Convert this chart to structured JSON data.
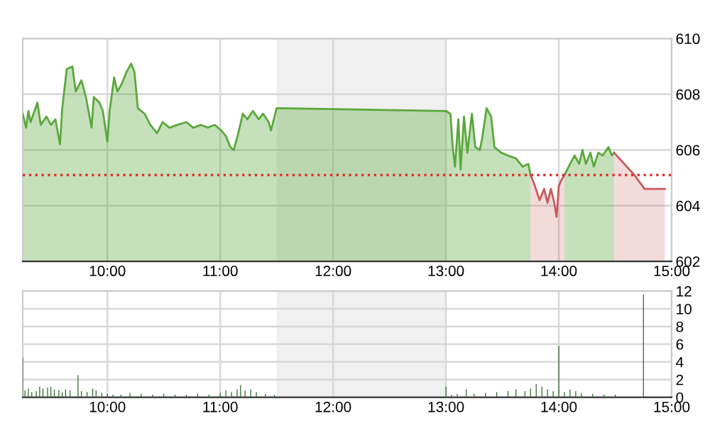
{
  "chart_data": [
    {
      "type": "area",
      "series": [
        {
          "color": "#5aa83c",
          "x": [
            9.25,
            9.28,
            9.3,
            9.32,
            9.38,
            9.41,
            9.46,
            9.5,
            9.54,
            9.58,
            9.6,
            9.64,
            9.69,
            9.72,
            9.77,
            9.81,
            9.86,
            9.88,
            9.93,
            9.96,
            10.0,
            10.02,
            10.06,
            10.09,
            10.13,
            10.17,
            10.21,
            10.24,
            10.27,
            10.33,
            10.38,
            10.44,
            10.49,
            10.55,
            10.62,
            10.7,
            10.76,
            10.83,
            10.89,
            10.95,
            11.01,
            11.05,
            11.09,
            11.12,
            11.16,
            11.2,
            11.24,
            11.29,
            11.34,
            11.38,
            11.43,
            11.45,
            11.5,
            13.0,
            13.04,
            13.06,
            13.08,
            13.11,
            13.13,
            13.16,
            13.19,
            13.23,
            13.26,
            13.3,
            13.32,
            13.36,
            13.4,
            13.43,
            13.49,
            13.55,
            13.62,
            13.68,
            13.73,
            13.75,
            13.78,
            14.05,
            14.1,
            14.14,
            14.18,
            14.21,
            14.24,
            14.28,
            14.31,
            14.35,
            14.39,
            14.44,
            14.47,
            14.49
          ],
          "values": [
            607.3,
            606.8,
            607.4,
            607.0,
            607.7,
            606.9,
            607.2,
            606.9,
            607.1,
            606.2,
            607.5,
            608.9,
            609.0,
            608.1,
            608.5,
            607.9,
            606.8,
            607.9,
            607.7,
            607.4,
            606.3,
            607.4,
            608.6,
            608.1,
            608.4,
            608.8,
            609.1,
            608.8,
            607.5,
            607.3,
            606.9,
            606.6,
            607.0,
            606.8,
            606.9,
            607.0,
            606.8,
            606.9,
            606.8,
            606.9,
            606.7,
            606.5,
            606.1,
            606.0,
            606.6,
            607.3,
            607.1,
            607.4,
            607.1,
            607.3,
            607.0,
            606.7,
            607.5,
            607.4,
            607.3,
            606.1,
            605.4,
            607.1,
            605.3,
            607.2,
            605.9,
            607.3,
            606.1,
            606.0,
            606.4,
            607.5,
            607.2,
            606.1,
            605.9,
            605.8,
            605.7,
            605.4,
            605.5,
            605.1,
            null,
            605.1,
            605.5,
            605.8,
            605.5,
            606.0,
            605.5,
            605.9,
            605.4,
            605.9,
            605.8,
            606.1,
            605.8,
            605.9
          ]
        },
        {
          "color": "#c85a5a",
          "x": [
            13.75,
            13.78,
            13.83,
            13.87,
            13.9,
            13.93,
            13.96,
            13.98,
            14.0,
            14.02,
            14.05,
            14.07,
            14.49,
            14.67,
            14.76,
            14.94
          ],
          "values": [
            605.1,
            604.8,
            604.2,
            604.6,
            604.1,
            604.6,
            604.1,
            603.6,
            604.7,
            604.9,
            605.1,
            null,
            605.9,
            605.1,
            604.6,
            604.6
          ]
        }
      ],
      "xlim": [
        9.25,
        15
      ],
      "ylim": [
        602,
        610
      ],
      "xticks": [
        {
          "value": 10,
          "label": "10:00"
        },
        {
          "value": 11,
          "label": "11:00"
        },
        {
          "value": 12,
          "label": "12:00"
        },
        {
          "value": 13,
          "label": "13:00"
        },
        {
          "value": 14,
          "label": "14:00"
        },
        {
          "value": 15,
          "label": "15:00"
        }
      ],
      "yticks": [
        602,
        604,
        606,
        608,
        610
      ],
      "ref_lines": [
        {
          "axis": "y",
          "value": 605.1,
          "color": "#e03030",
          "line_style": "dotted"
        }
      ],
      "bands": [
        {
          "axis": "x",
          "from": 11.5,
          "to": 13,
          "color": "#f0f0f0"
        }
      ],
      "grid": true
    },
    {
      "type": "bar",
      "series": [
        {
          "color": "#2e6b2e",
          "x": [
            9.25,
            9.27,
            9.3,
            9.33,
            9.37,
            9.4,
            9.43,
            9.47,
            9.5,
            9.53,
            9.57,
            9.6,
            9.63,
            9.67,
            9.74,
            9.77,
            9.82,
            9.87,
            9.9,
            9.95,
            10.0,
            10.05,
            10.12,
            10.2,
            10.3,
            10.4,
            10.5,
            10.6,
            10.7,
            10.8,
            10.9,
            11.0,
            11.05,
            11.1,
            11.15,
            11.18,
            11.22,
            11.27,
            11.32,
            11.4,
            11.48,
            13.0,
            13.05,
            13.1,
            13.18,
            13.25,
            13.35,
            13.45,
            13.55,
            13.62,
            13.7,
            13.75,
            13.8,
            13.85,
            13.9,
            13.95,
            14.0,
            14.05,
            14.1,
            14.15,
            14.2,
            14.3,
            14.4,
            14.5,
            14.75
          ],
          "values": [
            4.5,
            0.8,
            1.0,
            0.6,
            0.7,
            1.2,
            1.0,
            1.1,
            1.2,
            0.9,
            0.8,
            0.6,
            0.9,
            0.8,
            2.5,
            0.7,
            0.6,
            1.0,
            0.8,
            0.5,
            0.4,
            0.3,
            0.3,
            0.5,
            0.4,
            0.3,
            0.4,
            0.3,
            0.3,
            0.4,
            0.3,
            0.5,
            0.8,
            0.6,
            0.9,
            1.4,
            0.8,
            0.9,
            0.6,
            0.4,
            0.3,
            1.2,
            0.3,
            0.4,
            0.9,
            0.4,
            0.5,
            0.6,
            0.7,
            0.9,
            0.7,
            1.0,
            1.5,
            1.2,
            0.9,
            0.7,
            5.8,
            0.6,
            0.9,
            0.7,
            0.5,
            0.4,
            0.3,
            0.3,
            11.6
          ]
        }
      ],
      "xlim": [
        9.25,
        15
      ],
      "ylim": [
        0,
        12
      ],
      "xticks": [
        {
          "value": 10,
          "label": "10:00"
        },
        {
          "value": 11,
          "label": "11:00"
        },
        {
          "value": 12,
          "label": "12:00"
        },
        {
          "value": 13,
          "label": "13:00"
        },
        {
          "value": 14,
          "label": "14:00"
        },
        {
          "value": 15,
          "label": "15:00"
        }
      ],
      "yticks": [
        0,
        2,
        4,
        6,
        8,
        10,
        12
      ],
      "bands": [
        {
          "axis": "x",
          "from": 11.5,
          "to": 13,
          "color": "#f0f0f0"
        }
      ],
      "grid": true
    }
  ]
}
